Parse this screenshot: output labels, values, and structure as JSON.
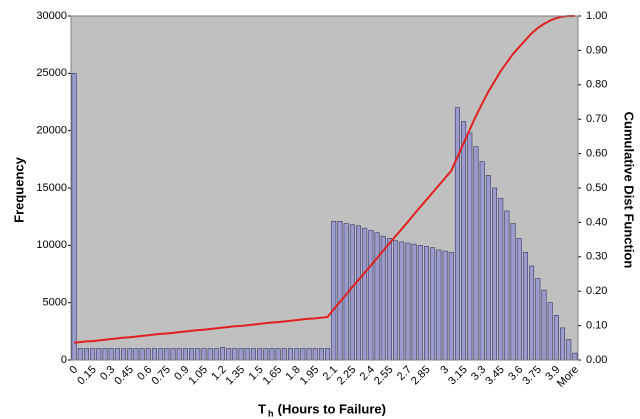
{
  "chart_data": {
    "type": "bar-line",
    "xlabel": [
      "T",
      "h",
      " (Hours to Failure)"
    ],
    "ylabel": "Frequency",
    "y2label": "Cumulative Dist Function",
    "categories": [
      "0",
      null,
      null,
      "0.15",
      null,
      null,
      "0.3",
      null,
      null,
      "0.45",
      null,
      null,
      "0.6",
      null,
      null,
      "0.75",
      null,
      null,
      "0.9",
      null,
      null,
      "1.05",
      null,
      null,
      "1.2",
      null,
      null,
      "1.35",
      null,
      null,
      "1.5",
      null,
      null,
      "1.65",
      null,
      null,
      "1.8",
      null,
      null,
      "1.95",
      null,
      null,
      "2.1",
      null,
      null,
      "2.25",
      null,
      null,
      "2.4",
      null,
      null,
      "2.55",
      null,
      null,
      "2.7",
      null,
      null,
      "2.85",
      null,
      null,
      "3",
      null,
      null,
      "3.15",
      null,
      null,
      "3.3",
      null,
      null,
      "3.45",
      null,
      null,
      "3.6",
      null,
      null,
      "3.75",
      null,
      null,
      "3.9",
      null,
      null,
      "More"
    ],
    "series": [
      {
        "type": "bar",
        "color": "#9c9ccc",
        "values": [
          25000,
          1000,
          1000,
          1000,
          1000,
          1000,
          1000,
          1000,
          1000,
          1000,
          1000,
          1000,
          1000,
          1000,
          1000,
          1000,
          1000,
          1000,
          1000,
          1000,
          1000,
          1000,
          1000,
          1000,
          1100,
          1000,
          1000,
          1000,
          1000,
          1000,
          1000,
          1000,
          1000,
          1000,
          1000,
          1000,
          1000,
          1000,
          1000,
          1000,
          1000,
          1000,
          12100,
          12100,
          11900,
          11800,
          11700,
          11500,
          11300,
          11100,
          10800,
          10600,
          10400,
          10300,
          10200,
          10100,
          10000,
          9900,
          9800,
          9600,
          9500,
          9400,
          22000,
          20800,
          19800,
          18600,
          17300,
          16100,
          15000,
          14100,
          13000,
          11900,
          10600,
          9400,
          8200,
          7100,
          6100,
          5000,
          3900,
          2800,
          1800,
          600
        ]
      },
      {
        "type": "line",
        "axis": "y2",
        "color": "#e02020",
        "values": [
          0.05,
          0.052,
          0.054,
          0.055,
          0.057,
          0.059,
          0.061,
          0.063,
          0.065,
          0.066,
          0.068,
          0.07,
          0.072,
          0.074,
          0.076,
          0.077,
          0.079,
          0.081,
          0.083,
          0.085,
          0.087,
          0.088,
          0.09,
          0.092,
          0.094,
          0.096,
          0.098,
          0.099,
          0.101,
          0.103,
          0.105,
          0.107,
          0.109,
          0.11,
          0.112,
          0.114,
          0.116,
          0.118,
          0.12,
          0.121,
          0.123,
          0.125,
          0.148,
          0.169,
          0.19,
          0.212,
          0.233,
          0.254,
          0.275,
          0.296,
          0.318,
          0.339,
          0.36,
          0.381,
          0.402,
          0.424,
          0.445,
          0.466,
          0.487,
          0.508,
          0.529,
          0.55,
          0.59,
          0.63,
          0.67,
          0.71,
          0.745,
          0.78,
          0.81,
          0.84,
          0.865,
          0.89,
          0.91,
          0.93,
          0.95,
          0.965,
          0.977,
          0.987,
          0.994,
          0.998,
          1.0,
          1.0
        ]
      }
    ],
    "ylim": [
      0,
      30000
    ],
    "yticks": [
      0,
      5000,
      10000,
      15000,
      20000,
      25000,
      30000
    ],
    "y2lim": [
      0,
      1
    ],
    "y2ticks": [
      {
        "value": 0,
        "label": "0.00"
      },
      {
        "value": 0.1,
        "label": "0.10"
      },
      {
        "value": 0.2,
        "label": "0.20"
      },
      {
        "value": 0.3,
        "label": "0.30"
      },
      {
        "value": 0.4,
        "label": "0.40"
      },
      {
        "value": 0.5,
        "label": "0.50"
      },
      {
        "value": 0.6,
        "label": "0.60"
      },
      {
        "value": 0.7,
        "label": "0.70"
      },
      {
        "value": 0.8,
        "label": "0.80"
      },
      {
        "value": 0.9,
        "label": "0.90"
      },
      {
        "value": 1,
        "label": "1.00"
      }
    ],
    "plot_background": "#c0c0c0"
  }
}
